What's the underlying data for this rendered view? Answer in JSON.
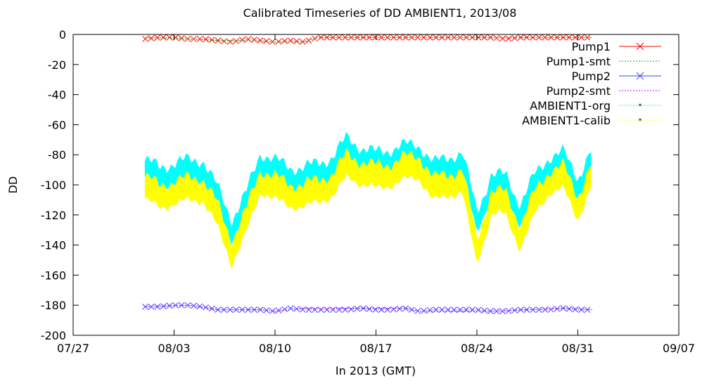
{
  "chart_data": {
    "type": "line",
    "title": "Calibrated Timeseries of DD AMBIENT1, 2013/08",
    "xlabel": "In 2013 (GMT)",
    "ylabel": "DD",
    "x_ticks": [
      "07/27",
      "08/03",
      "08/10",
      "08/17",
      "08/24",
      "08/31",
      "09/07"
    ],
    "x_range_days": [
      "2013-07-27",
      "2013-09-07"
    ],
    "ylim": [
      -200,
      0
    ],
    "y_ticks": [
      0,
      -20,
      -40,
      -60,
      -80,
      -100,
      -120,
      -140,
      -160,
      -180,
      -200
    ],
    "grid": false,
    "legend_position": "top-right",
    "series": [
      {
        "name": "Pump1",
        "color": "#ff0000",
        "marker": "x",
        "points": [
          [
            "08/01",
            -3
          ],
          [
            "08/02",
            -2
          ],
          [
            "08/03",
            -2
          ],
          [
            "08/04",
            -3
          ],
          [
            "08/05",
            -3
          ],
          [
            "08/06",
            -4
          ],
          [
            "08/07",
            -5
          ],
          [
            "08/08",
            -3
          ],
          [
            "08/09",
            -4
          ],
          [
            "08/10",
            -5
          ],
          [
            "08/11",
            -4
          ],
          [
            "08/12",
            -5
          ],
          [
            "08/13",
            -2
          ],
          [
            "08/14",
            -2
          ],
          [
            "08/15",
            -2
          ],
          [
            "08/16",
            -2
          ],
          [
            "08/17",
            -2
          ],
          [
            "08/18",
            -2
          ],
          [
            "08/19",
            -2
          ],
          [
            "08/20",
            -2
          ],
          [
            "08/21",
            -2
          ],
          [
            "08/22",
            -2
          ],
          [
            "08/23",
            -2
          ],
          [
            "08/24",
            -2
          ],
          [
            "08/25",
            -2
          ],
          [
            "08/26",
            -3
          ],
          [
            "08/27",
            -2
          ],
          [
            "08/28",
            -2
          ],
          [
            "08/29",
            -2
          ],
          [
            "08/30",
            -2
          ],
          [
            "08/31",
            -2
          ],
          [
            "09/01",
            -2
          ]
        ]
      },
      {
        "name": "Pump1-smt",
        "color": "#00c000",
        "marker": "line",
        "points": [
          [
            "08/01",
            -2
          ],
          [
            "08/04",
            -3
          ],
          [
            "08/06",
            -4
          ],
          [
            "08/08",
            -4
          ],
          [
            "08/10",
            -5
          ],
          [
            "08/12",
            -5
          ],
          [
            "08/13",
            -2
          ],
          [
            "08/20",
            -2
          ],
          [
            "08/26",
            -2
          ],
          [
            "09/01",
            -2
          ]
        ]
      },
      {
        "name": "Pump2",
        "color": "#4040ff",
        "marker": "x",
        "points": [
          [
            "08/01",
            -181
          ],
          [
            "08/02",
            -181
          ],
          [
            "08/03",
            -180
          ],
          [
            "08/04",
            -180
          ],
          [
            "08/05",
            -181
          ],
          [
            "08/06",
            -183
          ],
          [
            "08/07",
            -183
          ],
          [
            "08/08",
            -183
          ],
          [
            "08/09",
            -183
          ],
          [
            "08/10",
            -184
          ],
          [
            "08/11",
            -182
          ],
          [
            "08/12",
            -183
          ],
          [
            "08/13",
            -183
          ],
          [
            "08/14",
            -183
          ],
          [
            "08/15",
            -183
          ],
          [
            "08/16",
            -182
          ],
          [
            "08/17",
            -183
          ],
          [
            "08/18",
            -183
          ],
          [
            "08/19",
            -182
          ],
          [
            "08/20",
            -184
          ],
          [
            "08/21",
            -183
          ],
          [
            "08/22",
            -183
          ],
          [
            "08/23",
            -183
          ],
          [
            "08/24",
            -183
          ],
          [
            "08/25",
            -184
          ],
          [
            "08/26",
            -184
          ],
          [
            "08/27",
            -183
          ],
          [
            "08/28",
            -183
          ],
          [
            "08/29",
            -183
          ],
          [
            "08/30",
            -182
          ],
          [
            "08/31",
            -183
          ],
          [
            "09/01",
            -183
          ]
        ]
      },
      {
        "name": "Pump2-smt",
        "color": "#c000ff",
        "marker": "line",
        "points": [
          [
            "08/01",
            -181
          ],
          [
            "08/04",
            -180
          ],
          [
            "08/06",
            -183
          ],
          [
            "08/09",
            -183
          ],
          [
            "08/10",
            -184
          ],
          [
            "08/12",
            -182
          ],
          [
            "08/16",
            -182
          ],
          [
            "08/19",
            -182
          ],
          [
            "08/20",
            -184
          ],
          [
            "08/25",
            -184
          ],
          [
            "08/30",
            -182
          ],
          [
            "09/01",
            -183
          ]
        ]
      },
      {
        "name": "AMBIENT1-org",
        "color": "#00ffff",
        "marker": "band",
        "points": [
          [
            "08/01",
            -90
          ],
          [
            "08/02",
            -95
          ],
          [
            "08/03",
            -92
          ],
          [
            "08/04",
            -90
          ],
          [
            "08/05",
            -90
          ],
          [
            "08/06",
            -108
          ],
          [
            "08/07",
            -130
          ],
          [
            "08/08",
            -112
          ],
          [
            "08/09",
            -85
          ],
          [
            "08/10",
            -90
          ],
          [
            "08/11",
            -95
          ],
          [
            "08/12",
            -95
          ],
          [
            "08/13",
            -92
          ],
          [
            "08/14",
            -88
          ],
          [
            "08/15",
            -75
          ],
          [
            "08/16",
            -82
          ],
          [
            "08/17",
            -85
          ],
          [
            "08/18",
            -83
          ],
          [
            "08/19",
            -80
          ],
          [
            "08/20",
            -80
          ],
          [
            "08/21",
            -92
          ],
          [
            "08/22",
            -88
          ],
          [
            "08/23",
            -85
          ],
          [
            "08/24",
            -125
          ],
          [
            "08/25",
            -100
          ],
          [
            "08/26",
            -100
          ],
          [
            "08/27",
            -120
          ],
          [
            "08/28",
            -100
          ],
          [
            "08/29",
            -88
          ],
          [
            "08/30",
            -85
          ],
          [
            "08/31",
            -102
          ],
          [
            "09/01",
            -82
          ]
        ]
      },
      {
        "name": "AMBIENT1-calib",
        "color": "#ffff00",
        "marker": "band",
        "points": [
          [
            "08/01",
            -102
          ],
          [
            "08/02",
            -108
          ],
          [
            "08/03",
            -105
          ],
          [
            "08/04",
            -103
          ],
          [
            "08/05",
            -103
          ],
          [
            "08/06",
            -120
          ],
          [
            "08/07",
            -145
          ],
          [
            "08/08",
            -124
          ],
          [
            "08/09",
            -97
          ],
          [
            "08/10",
            -102
          ],
          [
            "08/11",
            -107
          ],
          [
            "08/12",
            -107
          ],
          [
            "08/13",
            -104
          ],
          [
            "08/14",
            -100
          ],
          [
            "08/15",
            -87
          ],
          [
            "08/16",
            -92
          ],
          [
            "08/17",
            -95
          ],
          [
            "08/18",
            -93
          ],
          [
            "08/19",
            -89
          ],
          [
            "08/20",
            -88
          ],
          [
            "08/21",
            -103
          ],
          [
            "08/22",
            -100
          ],
          [
            "08/23",
            -97
          ],
          [
            "08/24",
            -145
          ],
          [
            "08/25",
            -112
          ],
          [
            "08/26",
            -112
          ],
          [
            "08/27",
            -135
          ],
          [
            "08/28",
            -112
          ],
          [
            "08/29",
            -98
          ],
          [
            "08/30",
            -95
          ],
          [
            "08/31",
            -115
          ],
          [
            "09/01",
            -92
          ]
        ]
      }
    ]
  }
}
